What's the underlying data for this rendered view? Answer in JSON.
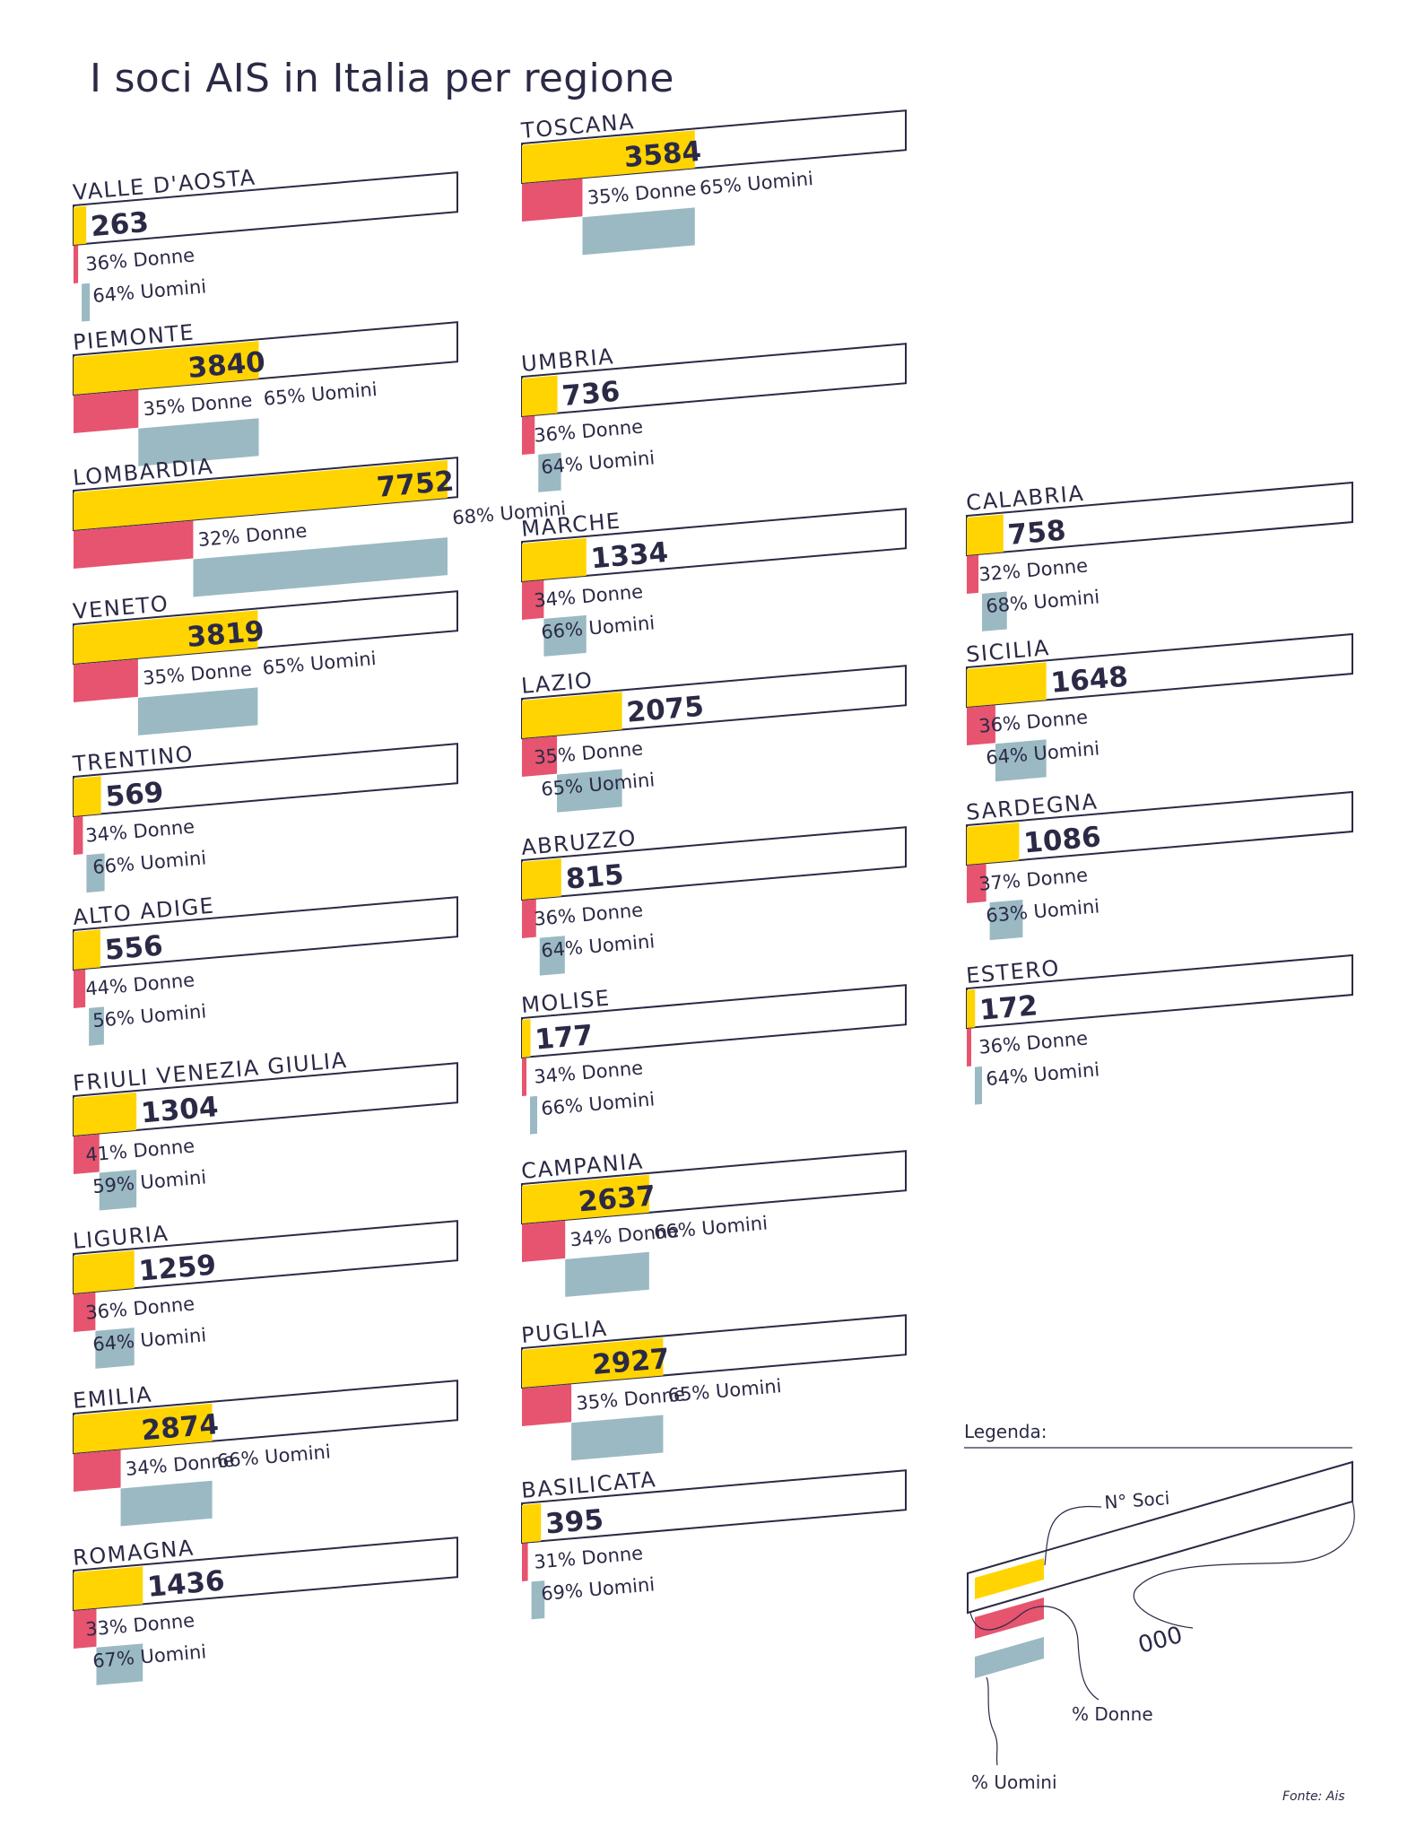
{
  "title": "I soci AIS in Italia per regione",
  "source": "Fonte: Ais",
  "colors": {
    "soci": "#ffd400",
    "donne": "#e6546f",
    "uomini": "#9ab9c3",
    "outline": "#2b2a46",
    "text": "#2b2a46"
  },
  "legend": {
    "title": "Legenda:",
    "soci_label": "N° Soci",
    "number_sample": "000",
    "donne_label": "% Donne",
    "uomini_label": "% Uomini"
  },
  "chart_data": {
    "type": "bar",
    "title": "I soci AIS in Italia per regione",
    "categories": [
      "Valle d'Aosta",
      "Piemonte",
      "Lombardia",
      "Veneto",
      "Trentino",
      "Alto Adige",
      "Friuli Venezia Giulia",
      "Liguria",
      "Emilia",
      "Romagna",
      "Toscana",
      "Umbria",
      "Marche",
      "Lazio",
      "Abruzzo",
      "Molise",
      "Campania",
      "Puglia",
      "Basilicata",
      "Calabria",
      "Sicilia",
      "Sardegna",
      "Estero"
    ],
    "series": [
      {
        "name": "N° Soci",
        "values": [
          263,
          3840,
          7752,
          3819,
          569,
          556,
          1304,
          1259,
          2874,
          1436,
          3584,
          736,
          1334,
          2075,
          815,
          177,
          2637,
          2927,
          395,
          758,
          1648,
          1086,
          172
        ]
      },
      {
        "name": "% Donne",
        "values": [
          36,
          35,
          32,
          35,
          34,
          44,
          41,
          36,
          34,
          33,
          35,
          36,
          34,
          35,
          36,
          34,
          34,
          35,
          31,
          32,
          36,
          37,
          36
        ]
      },
      {
        "name": "% Uomini",
        "values": [
          64,
          65,
          68,
          65,
          66,
          56,
          59,
          64,
          66,
          67,
          65,
          64,
          66,
          65,
          64,
          66,
          66,
          65,
          69,
          68,
          64,
          63,
          64
        ]
      }
    ],
    "regions": [
      {
        "label": "VALLE D'AOSTA",
        "soci": "263",
        "donne": "36% Donne",
        "uomini": "64% Uomini"
      },
      {
        "label": "PIEMONTE",
        "soci": "3840",
        "donne": "35% Donne",
        "uomini": "65% Uomini"
      },
      {
        "label": "LOMBARDIA",
        "soci": "7752",
        "donne": "32% Donne",
        "uomini": "68% Uomini"
      },
      {
        "label": "VENETO",
        "soci": "3819",
        "donne": "35% Donne",
        "uomini": "65% Uomini"
      },
      {
        "label": "TRENTINO",
        "soci": "569",
        "donne": "34% Donne",
        "uomini": "66% Uomini"
      },
      {
        "label": "ALTO ADIGE",
        "soci": "556",
        "donne": "44% Donne",
        "uomini": "56% Uomini"
      },
      {
        "label": "FRIULI VENEZIA GIULIA",
        "soci": "1304",
        "donne": "41% Donne",
        "uomini": "59% Uomini"
      },
      {
        "label": "LIGURIA",
        "soci": "1259",
        "donne": "36% Donne",
        "uomini": "64% Uomini"
      },
      {
        "label": "EMILIA",
        "soci": "2874",
        "donne": "34% Donne",
        "uomini": "66% Uomini"
      },
      {
        "label": "ROMAGNA",
        "soci": "1436",
        "donne": "33% Donne",
        "uomini": "67% Uomini"
      },
      {
        "label": "TOSCANA",
        "soci": "3584",
        "donne": "35% Donne",
        "uomini": "65% Uomini"
      },
      {
        "label": "UMBRIA",
        "soci": "736",
        "donne": "36% Donne",
        "uomini": "64% Uomini"
      },
      {
        "label": "MARCHE",
        "soci": "1334",
        "donne": "34% Donne",
        "uomini": "66% Uomini"
      },
      {
        "label": "LAZIO",
        "soci": "2075",
        "donne": "35% Donne",
        "uomini": "65% Uomini"
      },
      {
        "label": "ABRUZZO",
        "soci": "815",
        "donne": "36% Donne",
        "uomini": "64% Uomini"
      },
      {
        "label": "MOLISE",
        "soci": "177",
        "donne": "34% Donne",
        "uomini": "66% Uomini"
      },
      {
        "label": "CAMPANIA",
        "soci": "2637",
        "donne": "34% Donne",
        "uomini": "66% Uomini"
      },
      {
        "label": "PUGLIA",
        "soci": "2927",
        "donne": "35% Donne",
        "uomini": "65% Uomini"
      },
      {
        "label": "BASILICATA",
        "soci": "395",
        "donne": "31% Donne",
        "uomini": "69% Uomini"
      },
      {
        "label": "CALABRIA",
        "soci": "758",
        "donne": "32% Donne",
        "uomini": "68% Uomini"
      },
      {
        "label": "SICILIA",
        "soci": "1648",
        "donne": "36% Donne",
        "uomini": "64% Uomini"
      },
      {
        "label": "SARDEGNA",
        "soci": "1086",
        "donne": "37% Donne",
        "uomini": "63% Uomini"
      },
      {
        "label": "ESTERO",
        "soci": "172",
        "donne": "36% Donne",
        "uomini": "64% Uomini"
      }
    ],
    "xlim": [
      0,
      7752
    ]
  }
}
